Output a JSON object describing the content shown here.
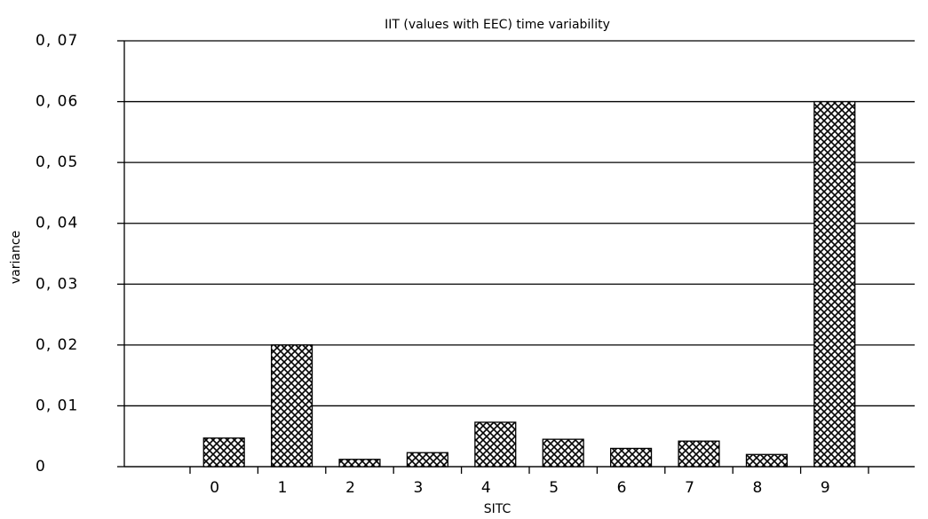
{
  "chart_data": {
    "type": "bar",
    "title": "IIT (values with EEC) time variability",
    "x_label": "SITC",
    "y_label": "variance",
    "categories": [
      "0",
      "1",
      "2",
      "3",
      "4",
      "5",
      "6",
      "7",
      "8",
      "9"
    ],
    "values": [
      0.0047,
      0.02,
      0.0012,
      0.0023,
      0.0073,
      0.0045,
      0.003,
      0.0042,
      0.002,
      0.06
    ],
    "color": "#000000",
    "ylim": [
      0,
      0.07
    ],
    "yticks": [
      0,
      {
        "value": 0.01,
        "label": "0, 01"
      },
      {
        "value": 0.02,
        "label": "0, 02"
      },
      {
        "value": 0.03,
        "label": "0, 03"
      },
      {
        "value": 0.04,
        "label": "0, 04"
      },
      {
        "value": 0.05,
        "label": "0, 05"
      },
      {
        "value": 0.06,
        "label": "0, 06"
      },
      {
        "value": 0.07,
        "label": "0, 07"
      }
    ],
    "grid": true
  }
}
